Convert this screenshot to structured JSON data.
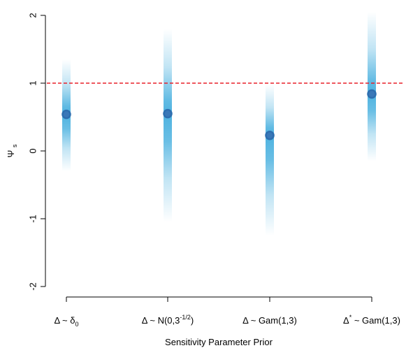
{
  "chart_data": {
    "type": "scatter",
    "title": "",
    "xlabel": "Sensitivity Parameter Prior",
    "ylabel": "Ψs",
    "ylabel_parts": {
      "main": "Ψ",
      "sub": "s"
    },
    "ylim": [
      -2,
      2
    ],
    "yticks": [
      -2,
      -1,
      0,
      1,
      2
    ],
    "reference_line": {
      "y": 1,
      "style": "dashed",
      "color": "#e8202a"
    },
    "categories": [
      {
        "label": "Δ ~ δ0",
        "main": "Δ ~ δ",
        "sub": "0",
        "sup": "",
        "tail": ""
      },
      {
        "label": "Δ ~ N(0,3^-1/2)",
        "main": "Δ ~ N(0,3",
        "sub": "",
        "sup": "-1/2",
        "tail": ")"
      },
      {
        "label": "Δ ~ Gam(1,3)",
        "main": "Δ ~ Gam(1,3)",
        "sub": "",
        "sup": "",
        "tail": ""
      },
      {
        "label": "Δ* ~ Gam(1,3)",
        "main": "Δ",
        "sub": "",
        "sup": "*",
        "tail": " ~ Gam(1,3)"
      }
    ],
    "points": [
      0.54,
      0.55,
      0.23,
      0.84
    ],
    "intervals": [
      {
        "low": -0.3,
        "high": 1.35
      },
      {
        "low": -1.05,
        "high": 1.8
      },
      {
        "low": -1.25,
        "high": 0.98
      },
      {
        "low": -0.15,
        "high": 2.05
      }
    ],
    "colors": {
      "point": "#2e6fb0",
      "point_fill": "#3a78b8",
      "band": "#4fb3e0",
      "axis": "#000000"
    },
    "grid": false
  }
}
